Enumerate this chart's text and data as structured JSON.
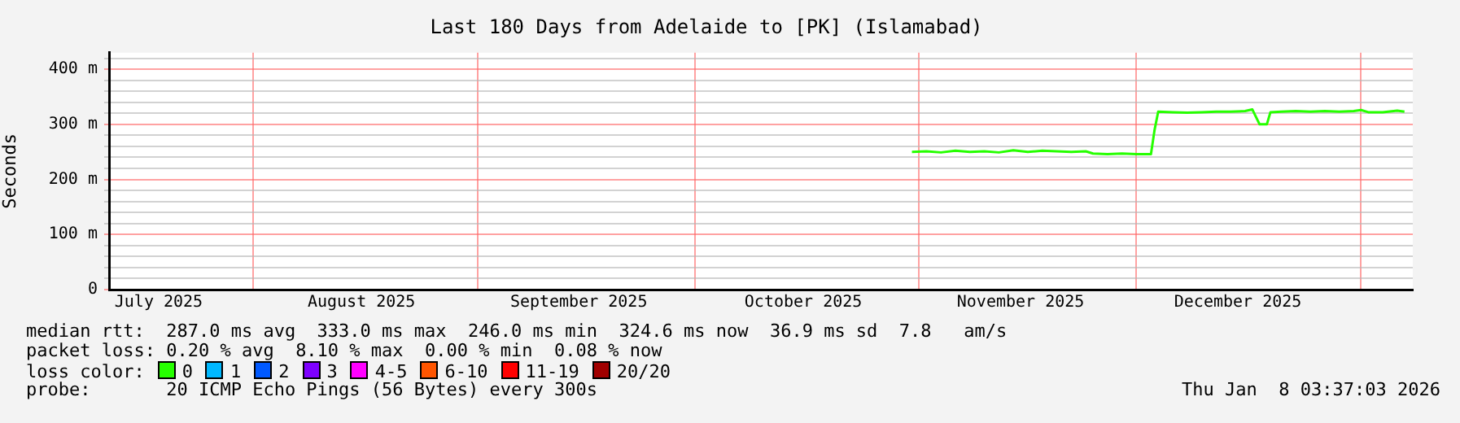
{
  "chart_data": {
    "type": "line",
    "title": "Last 180 Days from Adelaide to [PK] (Islamabad)",
    "ylabel": "Seconds",
    "x": [
      "2025-10-31",
      "2025-11-02",
      "2025-11-04",
      "2025-11-06",
      "2025-11-08",
      "2025-11-10",
      "2025-11-12",
      "2025-11-14",
      "2025-11-16",
      "2025-11-18",
      "2025-11-20",
      "2025-11-22",
      "2025-11-24",
      "2025-11-25",
      "2025-11-27",
      "2025-11-29",
      "2025-12-01",
      "2025-12-03",
      "2025-12-03T12:00",
      "2025-12-04",
      "2025-12-06",
      "2025-12-08",
      "2025-12-10",
      "2025-12-12",
      "2025-12-14",
      "2025-12-16",
      "2025-12-17",
      "2025-12-18",
      "2025-12-19",
      "2025-12-19T12:00",
      "2025-12-21",
      "2025-12-23",
      "2025-12-25",
      "2025-12-27",
      "2025-12-29",
      "2025-12-31",
      "2026-01-01",
      "2026-01-02",
      "2026-01-04",
      "2026-01-06",
      "2026-01-07"
    ],
    "series": [
      {
        "name": "0",
        "color": "#26ff00",
        "values": [
          250,
          251,
          249,
          252,
          250,
          251,
          249,
          253,
          250,
          252,
          251,
          250,
          251,
          247,
          246,
          247,
          246,
          246,
          290,
          323,
          322,
          321,
          322,
          323,
          323,
          324,
          327,
          300,
          300,
          322,
          323,
          324,
          323,
          324,
          323,
          324,
          326,
          322,
          322,
          325,
          323
        ]
      },
      {
        "name": "1",
        "color": "#00b8ff",
        "values": [
          null,
          null,
          null,
          null,
          null,
          null,
          null,
          null,
          null,
          null,
          null,
          null,
          null,
          null,
          null,
          null,
          null,
          null,
          null,
          null,
          null,
          null,
          null,
          null,
          null,
          null,
          null,
          null,
          null,
          null,
          null,
          null,
          null,
          null,
          null,
          null,
          null,
          null,
          null,
          null,
          null
        ]
      },
      {
        "name": "2",
        "color": "#0059ff",
        "values": [
          null,
          null,
          null,
          null,
          null,
          null,
          null,
          null,
          null,
          null,
          null,
          null,
          null,
          null,
          null,
          null,
          null,
          null,
          null,
          null,
          null,
          null,
          null,
          null,
          null,
          null,
          null,
          null,
          null,
          null,
          null,
          null,
          null,
          null,
          null,
          null,
          null,
          null,
          null,
          null,
          null
        ]
      },
      {
        "name": "3",
        "color": "#7e00ff",
        "values": [
          null,
          null,
          null,
          null,
          null,
          null,
          null,
          null,
          null,
          null,
          null,
          null,
          null,
          null,
          null,
          null,
          null,
          null,
          null,
          null,
          null,
          null,
          null,
          null,
          null,
          null,
          null,
          null,
          null,
          null,
          null,
          null,
          null,
          null,
          null,
          null,
          null,
          null,
          null,
          null,
          null
        ]
      },
      {
        "name": "4-5",
        "color": "#ff00ff",
        "values": [
          null,
          null,
          null,
          null,
          null,
          null,
          null,
          null,
          null,
          null,
          null,
          null,
          null,
          null,
          null,
          null,
          null,
          null,
          null,
          null,
          null,
          null,
          null,
          null,
          null,
          null,
          null,
          null,
          null,
          null,
          null,
          null,
          null,
          null,
          null,
          null,
          null,
          null,
          null,
          null,
          null
        ]
      },
      {
        "name": "6-10",
        "color": "#ff5500",
        "values": [
          null,
          null,
          null,
          null,
          null,
          null,
          null,
          null,
          null,
          null,
          null,
          null,
          null,
          null,
          null,
          null,
          null,
          null,
          null,
          null,
          null,
          null,
          null,
          null,
          null,
          null,
          null,
          null,
          null,
          null,
          null,
          null,
          null,
          null,
          null,
          null,
          null,
          null,
          null,
          null,
          null
        ]
      },
      {
        "name": "11-19",
        "color": "#ff0000",
        "values": [
          null,
          null,
          null,
          null,
          null,
          null,
          null,
          null,
          null,
          null,
          null,
          null,
          null,
          null,
          null,
          null,
          null,
          null,
          null,
          null,
          null,
          null,
          null,
          null,
          null,
          null,
          null,
          null,
          null,
          null,
          null,
          null,
          null,
          null,
          null,
          null,
          null,
          null,
          null,
          null,
          null
        ]
      },
      {
        "name": "20/20",
        "color": "#a10000",
        "values": [
          null,
          null,
          null,
          null,
          null,
          null,
          null,
          null,
          null,
          null,
          null,
          null,
          null,
          null,
          null,
          null,
          null,
          null,
          null,
          null,
          null,
          null,
          null,
          null,
          null,
          null,
          null,
          null,
          null,
          null,
          null,
          null,
          null,
          null,
          null,
          null,
          null,
          null,
          null,
          null,
          null
        ]
      }
    ],
    "legend_title": "loss color:",
    "legend": "bottom",
    "xlim": [
      "2025-07-12T03:37",
      "2026-01-08T03:37"
    ],
    "xticks": [
      {
        "value": "2025-07-19",
        "label": "July 2025"
      },
      {
        "value": "2025-08-01",
        "label": null
      },
      {
        "value": "2025-08-16",
        "label": "August 2025"
      },
      {
        "value": "2025-09-01",
        "label": null
      },
      {
        "value": "2025-09-15",
        "label": "September 2025"
      },
      {
        "value": "2025-10-01",
        "label": null
      },
      {
        "value": "2025-10-16",
        "label": "October 2025"
      },
      {
        "value": "2025-11-01",
        "label": null
      },
      {
        "value": "2025-11-15",
        "label": "November 2025"
      },
      {
        "value": "2025-12-01",
        "label": null
      },
      {
        "value": "2025-12-15",
        "label": "December 2025"
      },
      {
        "value": "2026-01-01",
        "label": null
      }
    ],
    "ylim": [
      0,
      430
    ],
    "yticks": [
      0,
      {
        "value": 20,
        "label": null
      },
      {
        "value": 40,
        "label": null
      },
      {
        "value": 60,
        "label": null
      },
      {
        "value": 80,
        "label": null
      },
      {
        "value": 100,
        "label": "100 m"
      },
      {
        "value": 120,
        "label": null
      },
      {
        "value": 140,
        "label": null
      },
      {
        "value": 160,
        "label": null
      },
      {
        "value": 180,
        "label": null
      },
      {
        "value": 200,
        "label": "200 m"
      },
      {
        "value": 220,
        "label": null
      },
      {
        "value": 240,
        "label": null
      },
      {
        "value": 260,
        "label": null
      },
      {
        "value": 280,
        "label": null
      },
      {
        "value": 300,
        "label": "300 m"
      },
      {
        "value": 320,
        "label": null
      },
      {
        "value": 340,
        "label": null
      },
      {
        "value": 360,
        "label": null
      },
      {
        "value": 380,
        "label": null
      },
      {
        "value": 400,
        "label": "400 m"
      },
      {
        "value": 420,
        "label": null
      }
    ],
    "grid": true,
    "marker": "none",
    "line_style": "solid",
    "annotations": [
      "median rtt:  287.0 ms avg  333.0 ms max  246.0 ms min  324.6 ms now  36.9 ms sd  7.8   am/s",
      "packet loss: 0.20 % avg  8.10 % max  0.00 % min  0.08 % now",
      "probe:       20 ICMP Echo Pings (56 Bytes) every 300s",
      "Thu Jan  8 03:37:03 2026"
    ]
  }
}
